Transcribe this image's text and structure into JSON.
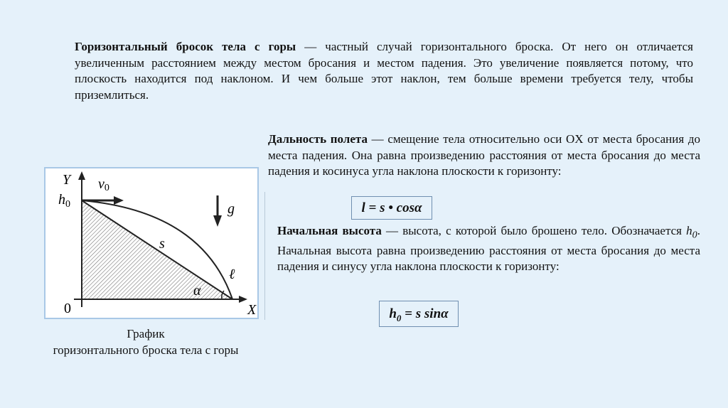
{
  "intro": {
    "term": "Горизонтальный бросок тела с горы",
    "text": " — частный случай горизонтального броска. От него он отличается увеличенным расстоянием между местом бросания и местом падения. Это увеличение появляется потому, что плоскость находится под наклоном. И чем больше этот наклон, тем больше времени требуется телу, чтобы приземлиться."
  },
  "range": {
    "term": "Дальность полета",
    "text": " — смещение тела относительно оси OX от места бросания до места падения. Она равна произведению расстояния от места бросания до места падения и косинуса угла наклона плоскости к горизонту:",
    "formula": "l = s • cosα"
  },
  "height": {
    "term": "Начальная высота",
    "text1": " — высота, с которой было брошено тело. Обозначается ",
    "symbol": "h",
    "symbol_sub": "0",
    "text2": ". Начальная высота равна произведению расстояния от места бросания до места падения и синусу угла наклона плоскости к горизонту:",
    "formula_lhs": "h",
    "formula_sub": "0",
    "formula_rhs": " = s sinα"
  },
  "diagram": {
    "y_axis": "Y",
    "x_axis": "X",
    "origin": "0",
    "h0": "h",
    "h0_sub": "0",
    "v0": "v",
    "v0_sub": "0",
    "g": "g",
    "s": "s",
    "l": "ℓ",
    "alpha": "α"
  },
  "caption": {
    "line1": "График",
    "line2": "горизонтального броска тела с горы"
  }
}
